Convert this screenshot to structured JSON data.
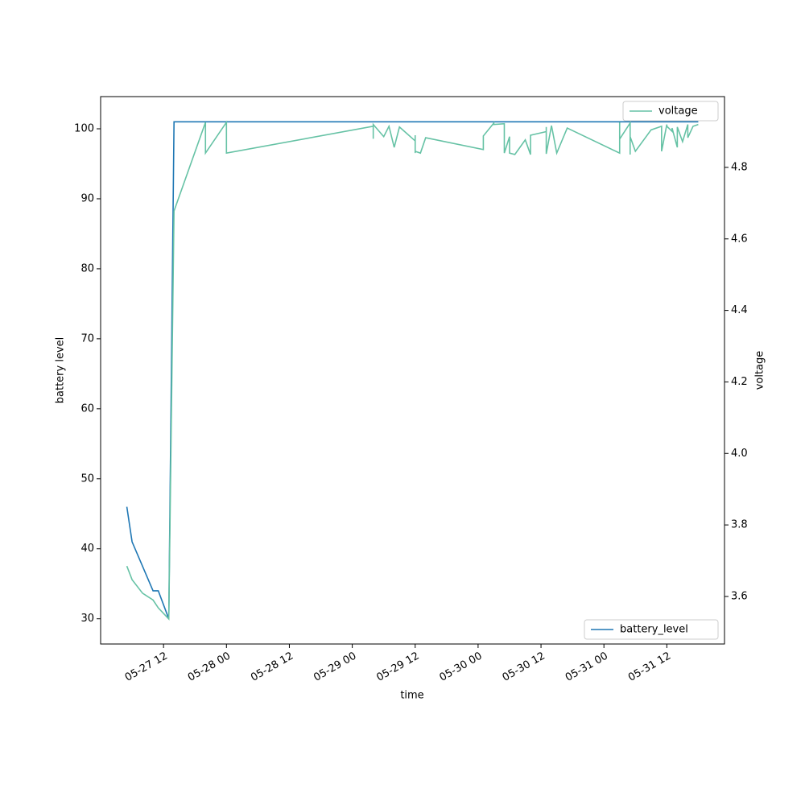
{
  "chart_data": {
    "type": "line",
    "xlabel": "time",
    "ylabel": "battery level",
    "y2label": "voltage",
    "xlim": [
      "05-27 00",
      "05-31 23"
    ],
    "xticks": [
      "05-27 12",
      "05-28 00",
      "05-28 12",
      "05-29 00",
      "05-29 12",
      "05-30 00",
      "05-30 12",
      "05-31 00",
      "05-31 12"
    ],
    "ylim": [
      26.4,
      104.6
    ],
    "yticks": [
      30,
      40,
      50,
      60,
      70,
      80,
      90,
      100
    ],
    "y2lim": [
      3.467,
      4.998
    ],
    "y2ticks": [
      3.6,
      3.8,
      {
        "value": 4,
        "label": "4.0"
      },
      4.2,
      4.4,
      4.6,
      4.8
    ],
    "series": [
      {
        "name": "battery_level",
        "color": "#1f77b4",
        "axis": "y",
        "legend": "lower right",
        "x": [
          "05-27 05",
          "05-27 06",
          "05-27 10",
          "05-27 11",
          "05-27 12",
          "05-27 13",
          "05-27 14",
          "05-31 18"
        ],
        "values": [
          46,
          41,
          34,
          34,
          32,
          30,
          101,
          101
        ]
      },
      {
        "name": "voltage",
        "color": "#66c2a5",
        "axis": "y2",
        "legend": "upper right",
        "x": [
          "05-27 05",
          "05-27 06",
          "05-27 08",
          "05-27 10",
          "05-27 11",
          "05-27 13",
          "05-27 14",
          "05-27 20",
          "05-27 20",
          "05-28 00",
          "05-28 00",
          "05-29 04",
          "05-29 04",
          "05-29 04",
          "05-29 06",
          "05-29 07",
          "05-29 08",
          "05-29 09",
          "05-29 12",
          "05-29 12",
          "05-29 12",
          "05-29 12",
          "05-29 13",
          "05-29 14",
          "05-30 01",
          "05-30 01",
          "05-30 03",
          "05-30 03",
          "05-30 05",
          "05-30 05",
          "05-30 06",
          "05-30 06",
          "05-30 07",
          "05-30 09",
          "05-30 10",
          "05-30 10",
          "05-30 13",
          "05-30 13",
          "05-30 13",
          "05-30 14",
          "05-30 15",
          "05-30 17",
          "05-31 03",
          "05-31 03",
          "05-31 03",
          "05-31 05",
          "05-31 05",
          "05-31 05",
          "05-31 06",
          "05-31 09",
          "05-31 11",
          "05-31 11",
          "05-31 12",
          "05-31 12",
          "05-31 13",
          "05-31 13",
          "05-31 14",
          "05-31 14",
          "05-31 15",
          "05-31 16",
          "05-31 16",
          "05-31 17",
          "05-31 18"
        ],
        "values": [
          3.685,
          3.647,
          3.609,
          3.59,
          3.568,
          3.537,
          4.678,
          4.926,
          4.84,
          4.926,
          4.84,
          4.915,
          4.88,
          4.92,
          4.886,
          4.915,
          4.856,
          4.913,
          4.874,
          4.84,
          4.89,
          4.845,
          4.84,
          4.883,
          4.85,
          4.888,
          4.924,
          4.92,
          4.922,
          4.84,
          4.886,
          4.84,
          4.836,
          4.877,
          4.836,
          4.89,
          4.9,
          4.913,
          4.838,
          4.917,
          4.84,
          4.91,
          4.84,
          4.926,
          4.879,
          4.924,
          4.836,
          4.886,
          4.845,
          4.905,
          4.915,
          4.845,
          4.92,
          4.915,
          4.901,
          4.91,
          4.856,
          4.913,
          4.872,
          4.92,
          4.883,
          4.915,
          4.92
        ]
      }
    ]
  }
}
